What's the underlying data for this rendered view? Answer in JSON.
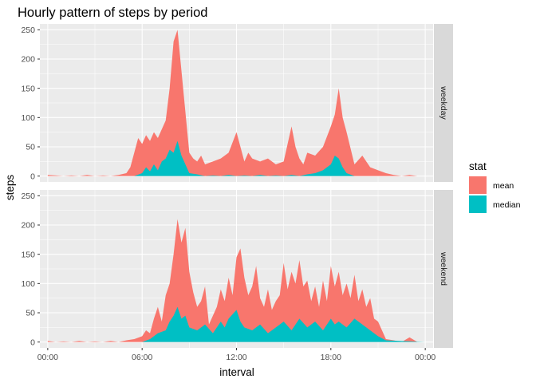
{
  "title": "Hourly pattern of steps by period",
  "colors": {
    "mean": "#F8766D",
    "median": "#00BFC4"
  },
  "chart_data": {
    "type": "area",
    "title": "Hourly pattern of steps by period",
    "xlabel": "interval",
    "ylabel": "steps",
    "x_ticks": [
      "00:00",
      "06:00",
      "12:00",
      "18:00",
      "00:00"
    ],
    "x_tick_hours": [
      0,
      6,
      12,
      18,
      24
    ],
    "y_ticks": [
      0,
      50,
      100,
      150,
      200,
      250
    ],
    "xlim": [
      -0.5,
      24.5
    ],
    "ylim": [
      -10,
      260
    ],
    "grid": true,
    "legend": {
      "title": "stat",
      "position": "right",
      "entries": [
        "mean",
        "median"
      ]
    },
    "facets": [
      {
        "label": "weekday",
        "series": [
          {
            "name": "mean",
            "x": [
              0,
              0.5,
              1,
              1.5,
              2,
              2.5,
              3,
              3.5,
              4,
              4.5,
              5,
              5.25,
              5.5,
              5.75,
              6,
              6.25,
              6.5,
              6.75,
              7,
              7.25,
              7.5,
              7.75,
              8,
              8.25,
              8.5,
              8.75,
              9,
              9.25,
              9.5,
              9.75,
              10,
              10.5,
              11,
              11.5,
              12,
              12.25,
              12.5,
              12.75,
              13,
              13.5,
              14,
              14.5,
              15,
              15.5,
              15.75,
              16,
              16.25,
              16.5,
              17,
              17.5,
              18,
              18.25,
              18.5,
              18.75,
              19,
              19.5,
              20,
              20.5,
              21,
              21.5,
              22,
              22.5,
              23,
              23.5,
              24
            ],
            "values": [
              2,
              1,
              0,
              1,
              0,
              2,
              0,
              1,
              0,
              2,
              5,
              15,
              40,
              65,
              55,
              70,
              60,
              75,
              65,
              80,
              95,
              150,
              230,
              250,
              180,
              110,
              40,
              30,
              25,
              35,
              20,
              25,
              30,
              40,
              75,
              50,
              25,
              40,
              30,
              25,
              30,
              20,
              25,
              85,
              50,
              30,
              20,
              40,
              35,
              50,
              85,
              105,
              150,
              100,
              75,
              20,
              35,
              15,
              10,
              5,
              2,
              0,
              2,
              0,
              0
            ]
          },
          {
            "name": "median",
            "x": [
              0,
              5.5,
              6,
              6.25,
              6.5,
              6.75,
              7,
              7.25,
              7.5,
              7.75,
              8,
              8.25,
              8.5,
              8.75,
              9,
              9.5,
              10,
              10.5,
              11,
              11.5,
              12,
              12.5,
              13,
              13.5,
              14,
              14.5,
              15,
              15.5,
              16,
              16.5,
              17,
              17.5,
              18,
              18.25,
              18.5,
              18.75,
              19,
              19.5,
              24
            ],
            "values": [
              0,
              0,
              5,
              15,
              8,
              20,
              10,
              25,
              30,
              45,
              40,
              60,
              35,
              20,
              5,
              3,
              0,
              1,
              0,
              2,
              0,
              1,
              0,
              2,
              0,
              1,
              0,
              2,
              0,
              3,
              5,
              10,
              20,
              35,
              30,
              15,
              5,
              0,
              0
            ]
          }
        ]
      },
      {
        "label": "weekend",
        "series": [
          {
            "name": "mean",
            "x": [
              0,
              0.5,
              1,
              1.5,
              2,
              2.5,
              3,
              3.5,
              4,
              4.5,
              5,
              5.5,
              6,
              6.25,
              6.5,
              6.75,
              7,
              7.25,
              7.5,
              7.75,
              8,
              8.25,
              8.5,
              8.75,
              9,
              9.25,
              9.5,
              9.75,
              10,
              10.25,
              10.5,
              10.75,
              11,
              11.25,
              11.5,
              11.75,
              12,
              12.25,
              12.5,
              12.75,
              13,
              13.25,
              13.5,
              13.75,
              14,
              14.25,
              14.5,
              14.75,
              15,
              15.25,
              15.5,
              15.75,
              16,
              16.25,
              16.5,
              16.75,
              17,
              17.25,
              17.5,
              17.75,
              18,
              18.25,
              18.5,
              18.75,
              19,
              19.25,
              19.5,
              19.75,
              20,
              20.25,
              20.5,
              20.75,
              21,
              21.25,
              21.5,
              22,
              22.5,
              23,
              23.5,
              24
            ],
            "values": [
              2,
              0,
              1,
              0,
              2,
              0,
              1,
              0,
              2,
              0,
              3,
              5,
              10,
              20,
              15,
              40,
              60,
              35,
              80,
              100,
              150,
              210,
              170,
              195,
              120,
              85,
              60,
              70,
              95,
              30,
              45,
              60,
              90,
              70,
              110,
              80,
              145,
              160,
              110,
              80,
              95,
              130,
              75,
              60,
              90,
              55,
              70,
              80,
              135,
              90,
              120,
              100,
              140,
              95,
              105,
              70,
              95,
              60,
              105,
              70,
              130,
              95,
              120,
              80,
              100,
              75,
              115,
              70,
              90,
              60,
              75,
              40,
              35,
              20,
              5,
              3,
              0,
              8,
              0,
              0
            ]
          },
          {
            "name": "median",
            "x": [
              0,
              6,
              6.5,
              7,
              7.5,
              7.75,
              8,
              8.25,
              8.5,
              8.75,
              9,
              9.5,
              10,
              10.5,
              11,
              11.25,
              11.5,
              12,
              12.25,
              12.5,
              13,
              13.5,
              14,
              14.5,
              15,
              15.5,
              16,
              16.5,
              17,
              17.5,
              18,
              18.25,
              18.5,
              19,
              19.5,
              20,
              20.5,
              21,
              21.5,
              24
            ],
            "values": [
              0,
              0,
              5,
              15,
              20,
              35,
              45,
              60,
              40,
              45,
              25,
              20,
              30,
              15,
              35,
              25,
              40,
              55,
              35,
              25,
              20,
              30,
              15,
              25,
              35,
              20,
              40,
              25,
              35,
              20,
              40,
              30,
              35,
              25,
              40,
              30,
              20,
              10,
              3,
              0
            ]
          }
        ]
      }
    ]
  }
}
